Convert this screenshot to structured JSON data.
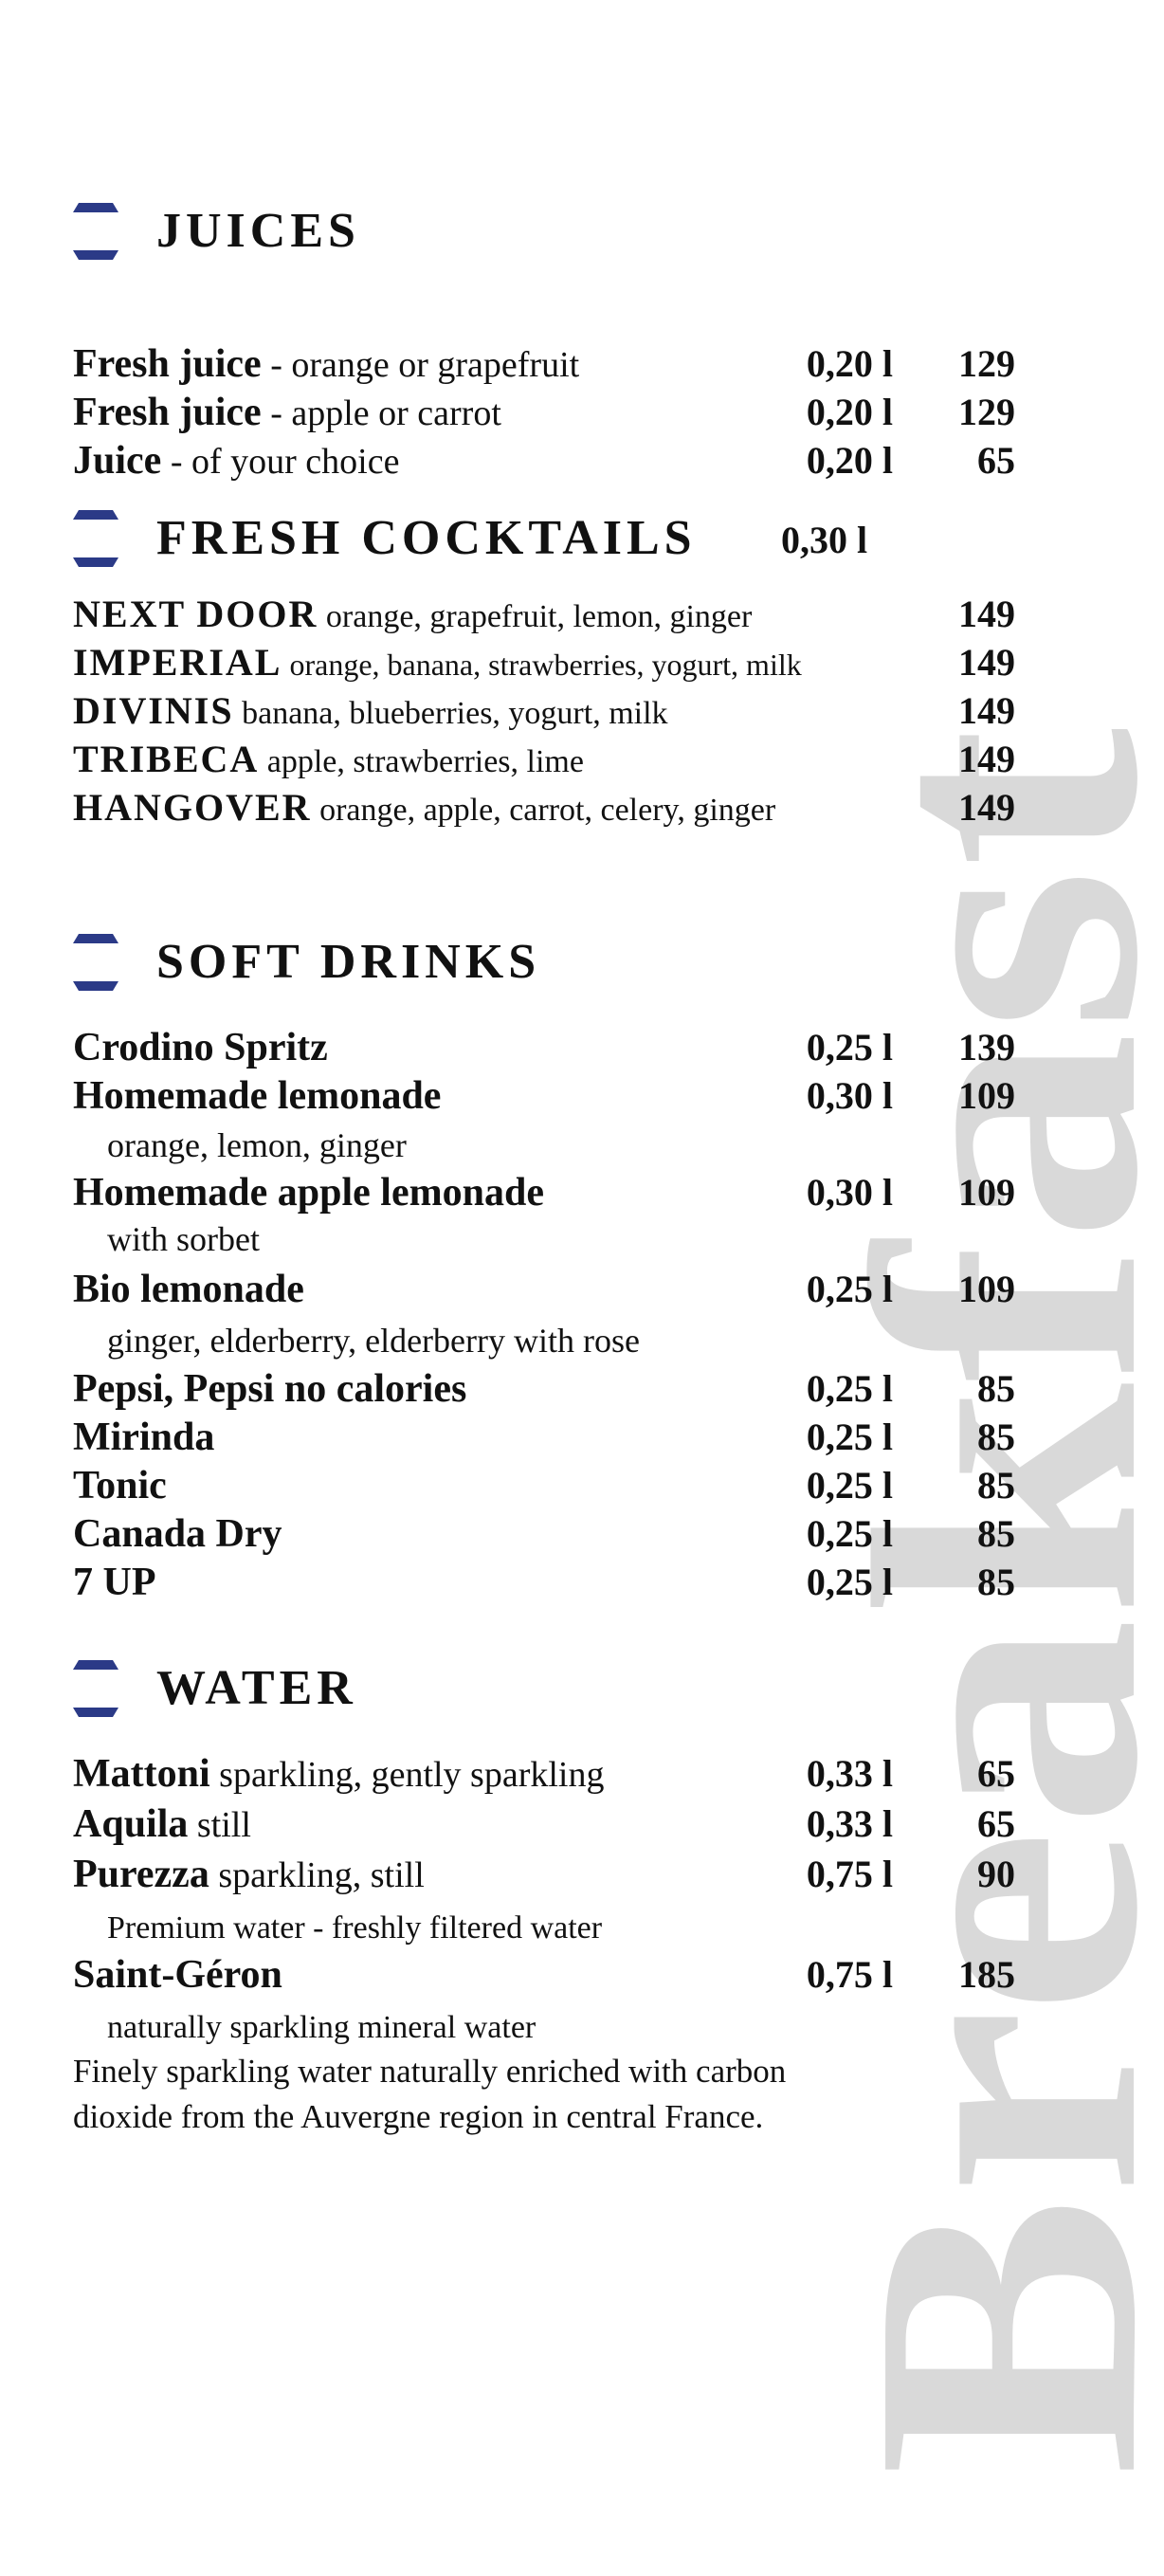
{
  "watermark": "Breakfast",
  "colors": {
    "accent": "#2b3a87",
    "watermark": "#d9d9d9",
    "text": "#111111"
  },
  "juices": {
    "title": "JUICES",
    "items": [
      {
        "name": "Fresh juice",
        "desc": " - orange or grapefruit",
        "volume": "0,20 l",
        "price": "129"
      },
      {
        "name": "Fresh juice",
        "desc": " - apple or carrot",
        "volume": "0,20 l",
        "price": "129"
      },
      {
        "name": "Juice",
        "desc": " - of your choice",
        "volume": "0,20 l",
        "price": "65"
      }
    ]
  },
  "cocktails": {
    "title": "FRESH COCKTAILS",
    "volume": "0,30 l",
    "items": [
      {
        "name": "NEXT DOOR",
        "desc": " orange, grapefruit, lemon, ginger",
        "price": "149"
      },
      {
        "name": "IMPERIAL",
        "desc": " orange, banana, strawberries, yogurt, milk",
        "price": "149"
      },
      {
        "name": "DIVINIS",
        "desc": " banana, blueberries, yogurt, milk",
        "price": "149"
      },
      {
        "name": "TRIBECA",
        "desc": " apple, strawberries, lime",
        "price": "149"
      },
      {
        "name": "HANGOVER",
        "desc": " orange, apple, carrot, celery, ginger",
        "price": "149"
      }
    ]
  },
  "soft": {
    "title": "SOFT DRINKS",
    "items": [
      {
        "name": "Crodino Spritz",
        "volume": "0,25 l",
        "price": "139"
      },
      {
        "name": "Homemade lemonade",
        "volume": "0,30 l",
        "price": "109",
        "sub": "orange, lemon, ginger"
      },
      {
        "name": "Homemade apple lemonade",
        "volume": "0,30 l",
        "price": "109",
        "sub": "with sorbet"
      },
      {
        "name": "Bio lemonade",
        "volume": "0,25 l",
        "price": "109",
        "sub": "ginger, elderberry, elderberry with rose"
      },
      {
        "name": "Pepsi, Pepsi no calories",
        "volume": "0,25 l",
        "price": "85"
      },
      {
        "name": "Mirinda",
        "volume": "0,25 l",
        "price": "85"
      },
      {
        "name": "Tonic",
        "volume": "0,25 l",
        "price": "85"
      },
      {
        "name": "Canada Dry",
        "volume": "0,25 l",
        "price": "85"
      },
      {
        "name": "7 UP",
        "volume": "0,25 l",
        "price": "85"
      }
    ]
  },
  "water": {
    "title": "WATER",
    "items": [
      {
        "name": "Mattoni",
        "desc": " sparkling, gently sparkling",
        "volume": "0,33 l",
        "price": "65"
      },
      {
        "name": "Aquila",
        "desc": " still",
        "volume": "0,33 l",
        "price": "65"
      },
      {
        "name": "Purezza",
        "desc": " sparkling, still",
        "volume": "0,75 l",
        "price": "90",
        "sub": "Premium water - freshly filtered water"
      },
      {
        "name": "Saint-Géron",
        "volume": "0,75 l",
        "price": "185",
        "sub": "naturally sparkling mineral water"
      }
    ],
    "note": [
      "Finely sparkling water naturally enriched with carbon",
      "dioxide from the Auvergne region in central France."
    ]
  }
}
